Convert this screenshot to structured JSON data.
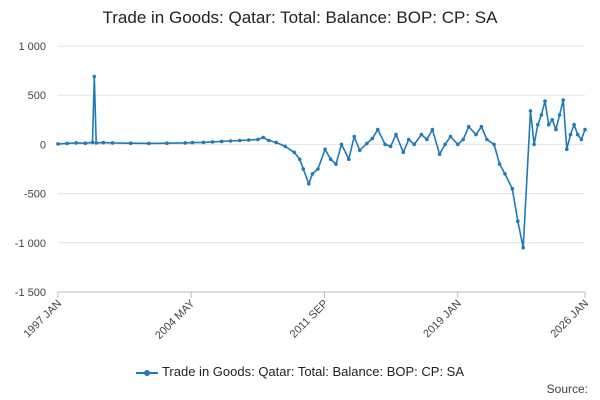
{
  "chart_data": {
    "type": "line",
    "title": "Trade in Goods: Qatar: Total: Balance: BOP: CP: SA",
    "xlabel": "",
    "ylabel": "",
    "x_tick_labels": [
      "1997 JAN",
      "2004 MAY",
      "2011 SEP",
      "2019 JAN",
      "2026 JAN"
    ],
    "y_tick_labels": [
      "1 000",
      "500",
      "0",
      "-500",
      "-1 000",
      "-1 500"
    ],
    "ylim": [
      -1500,
      1000
    ],
    "legend": "bottom",
    "series": [
      {
        "name": "Trade in Goods: Qatar: Total: Balance: BOP: CP: SA",
        "color": "#1f7ab8",
        "x": [
          1997.0,
          1997.5,
          1998.0,
          1998.5,
          1998.9,
          1999.0,
          1999.1,
          1999.5,
          2000.0,
          2001.0,
          2002.0,
          2003.0,
          2004.0,
          2004.4,
          2005.0,
          2005.5,
          2006.0,
          2006.5,
          2007.0,
          2007.5,
          2008.0,
          2008.3,
          2008.6,
          2009.0,
          2009.5,
          2010.0,
          2010.3,
          2010.5,
          2010.8,
          2011.0,
          2011.3,
          2011.7,
          2012.0,
          2012.3,
          2012.6,
          2013.0,
          2013.3,
          2013.6,
          2014.0,
          2014.3,
          2014.6,
          2015.0,
          2015.3,
          2015.6,
          2016.0,
          2016.3,
          2016.6,
          2017.0,
          2017.3,
          2017.6,
          2018.0,
          2018.3,
          2018.6,
          2019.0,
          2019.3,
          2019.6,
          2020.0,
          2020.3,
          2020.6,
          2021.0,
          2021.3,
          2021.6,
          2022.0,
          2022.3,
          2022.6,
          2023.0,
          2023.2,
          2023.4,
          2023.6,
          2023.8,
          2024.0,
          2024.2,
          2024.4,
          2024.6,
          2024.8,
          2025.0,
          2025.2,
          2025.4,
          2025.6,
          2025.8,
          2026.0
        ],
        "values": [
          5,
          10,
          15,
          12,
          20,
          690,
          15,
          18,
          15,
          12,
          10,
          12,
          15,
          18,
          20,
          25,
          30,
          35,
          40,
          45,
          50,
          70,
          40,
          20,
          -20,
          -80,
          -150,
          -250,
          -400,
          -300,
          -250,
          -50,
          -150,
          -200,
          0,
          -150,
          80,
          -60,
          10,
          60,
          150,
          0,
          -20,
          100,
          -80,
          50,
          0,
          100,
          50,
          150,
          -100,
          0,
          80,
          0,
          50,
          180,
          100,
          180,
          50,
          0,
          -200,
          -300,
          -450,
          -780,
          -1050,
          340,
          0,
          200,
          300,
          440,
          200,
          250,
          150,
          300,
          450,
          -50,
          100,
          200,
          100,
          50,
          150
        ]
      }
    ]
  },
  "source_label": "Source:"
}
